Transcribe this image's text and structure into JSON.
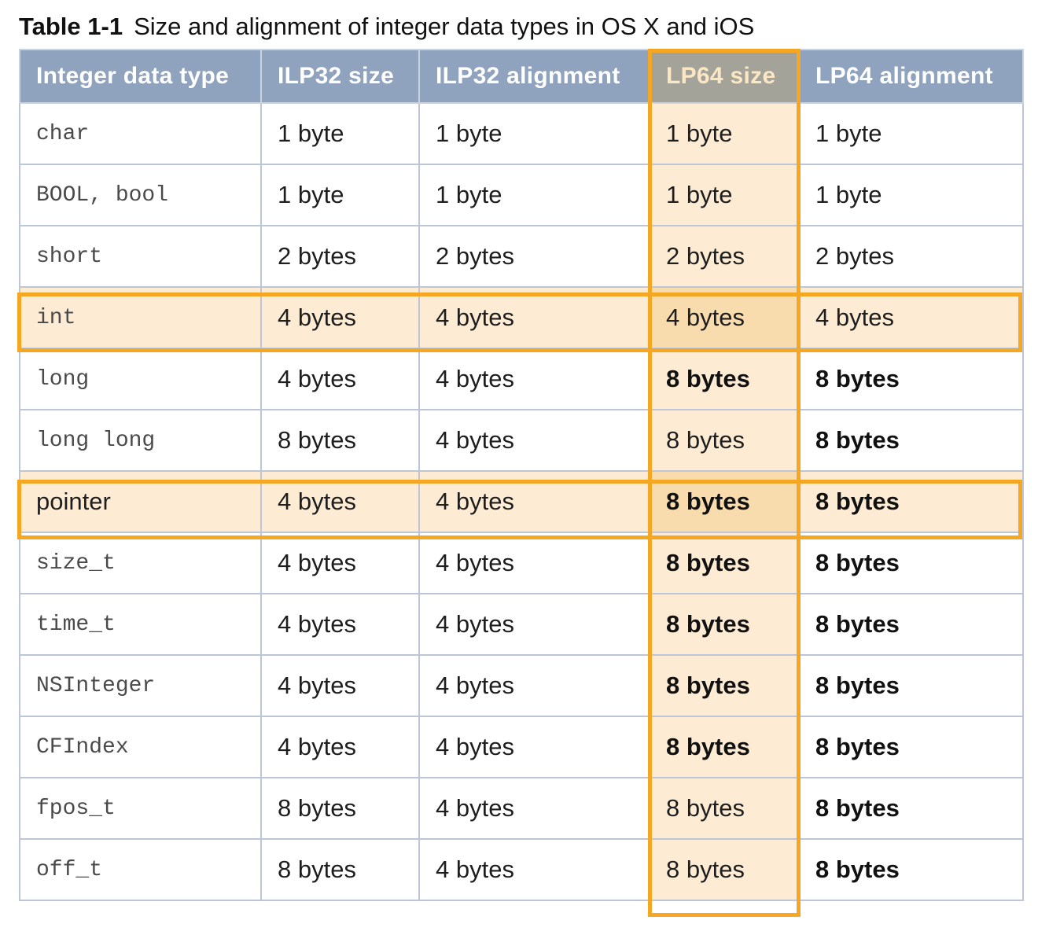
{
  "caption": {
    "label": "Table 1-1",
    "title": "Size and alignment of integer data types in OS X and iOS"
  },
  "table": {
    "headers": [
      "Integer data type",
      "ILP32 size",
      "ILP32 alignment",
      "LP64 size",
      "LP64 alignment"
    ],
    "highlighted_column": "LP64 size",
    "highlighted_rows": [
      "int",
      "pointer"
    ],
    "highlight_color": "#f5a623",
    "header_color": "#8fa3be",
    "rows": [
      {
        "type": "char",
        "ilp32_size": "1 byte",
        "ilp32_align": "1 byte",
        "lp64_size": "1 byte",
        "lp64_align": "1 byte"
      },
      {
        "type": "BOOL, bool",
        "ilp32_size": "1 byte",
        "ilp32_align": "1 byte",
        "lp64_size": "1 byte",
        "lp64_align": "1 byte"
      },
      {
        "type": "short",
        "ilp32_size": "2 bytes",
        "ilp32_align": "2 bytes",
        "lp64_size": "2 bytes",
        "lp64_align": "2 bytes"
      },
      {
        "type": "int",
        "ilp32_size": "4 bytes",
        "ilp32_align": "4 bytes",
        "lp64_size": "4 bytes",
        "lp64_align": "4 bytes"
      },
      {
        "type": "long",
        "ilp32_size": "4 bytes",
        "ilp32_align": "4 bytes",
        "lp64_size": "8 bytes",
        "lp64_align": "8 bytes"
      },
      {
        "type": "long long",
        "ilp32_size": "8 bytes",
        "ilp32_align": "4 bytes",
        "lp64_size": "8 bytes",
        "lp64_align": "8 bytes"
      },
      {
        "type": "pointer",
        "ilp32_size": "4 bytes",
        "ilp32_align": "4 bytes",
        "lp64_size": "8 bytes",
        "lp64_align": "8 bytes"
      },
      {
        "type": "size_t",
        "ilp32_size": "4 bytes",
        "ilp32_align": "4 bytes",
        "lp64_size": "8 bytes",
        "lp64_align": "8 bytes"
      },
      {
        "type": "time_t",
        "ilp32_size": "4 bytes",
        "ilp32_align": "4 bytes",
        "lp64_size": "8 bytes",
        "lp64_align": "8 bytes"
      },
      {
        "type": "NSInteger",
        "ilp32_size": "4 bytes",
        "ilp32_align": "4 bytes",
        "lp64_size": "8 bytes",
        "lp64_align": "8 bytes"
      },
      {
        "type": "CFIndex",
        "ilp32_size": "4 bytes",
        "ilp32_align": "4 bytes",
        "lp64_size": "8 bytes",
        "lp64_align": "8 bytes"
      },
      {
        "type": "fpos_t",
        "ilp32_size": "8 bytes",
        "ilp32_align": "4 bytes",
        "lp64_size": "8 bytes",
        "lp64_align": "8 bytes"
      },
      {
        "type": "off_t",
        "ilp32_size": "8 bytes",
        "ilp32_align": "4 bytes",
        "lp64_size": "8 bytes",
        "lp64_align": "8 bytes"
      }
    ]
  }
}
